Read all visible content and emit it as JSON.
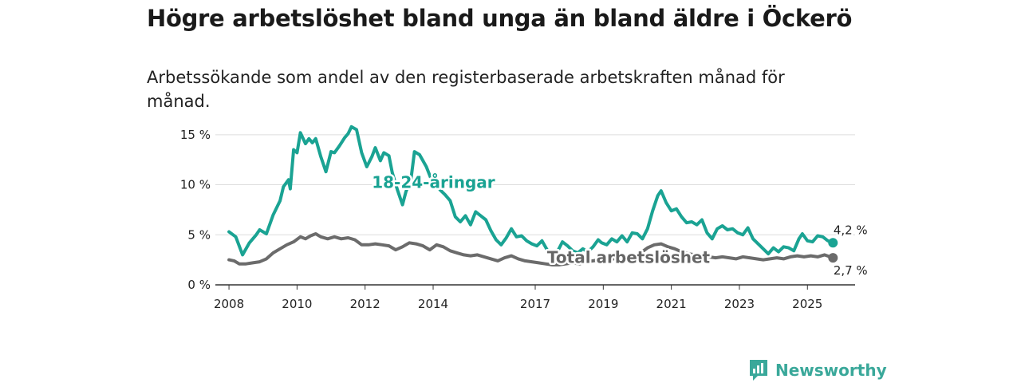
{
  "title": "Högre arbetslöshet bland unga än bland äldre i Öckerö",
  "subtitle": "Arbetssökande som andel av den registerbaserade arbetskraften månad för månad.",
  "brand": {
    "name": "Newsworthy",
    "icon": "newsworthy-chart-bubble-icon"
  },
  "colors": {
    "youth": "#1aa393",
    "total": "#6b6b6b",
    "grid": "#dddddd"
  },
  "chart_data": {
    "type": "line",
    "xlabel": "",
    "ylabel": "",
    "xlim": [
      2007.6,
      2026.4
    ],
    "ylim": [
      0,
      16.5
    ],
    "y_ticks": [
      {
        "value": 0,
        "label": "0 %"
      },
      {
        "value": 5,
        "label": "5 %"
      },
      {
        "value": 10,
        "label": "10 %"
      },
      {
        "value": 15,
        "label": "15 %"
      }
    ],
    "x_ticks": [
      {
        "value": 2008,
        "label": "2008"
      },
      {
        "value": 2010,
        "label": "2010"
      },
      {
        "value": 2012,
        "label": "2012"
      },
      {
        "value": 2014,
        "label": "2014"
      },
      {
        "value": 2017,
        "label": "2017"
      },
      {
        "value": 2019,
        "label": "2019"
      },
      {
        "value": 2021,
        "label": "2021"
      },
      {
        "value": 2023,
        "label": "2023"
      },
      {
        "value": 2025,
        "label": "2025"
      }
    ],
    "series": [
      {
        "name": "18-24-åringar",
        "label": "18-24-åringar",
        "label_at": {
          "x": 2012.2,
          "y": 9.7
        },
        "end_label": "4,2 %",
        "end_value": 4.2,
        "points": [
          [
            2008.0,
            5.3
          ],
          [
            2008.2,
            4.8
          ],
          [
            2008.4,
            3.0
          ],
          [
            2008.6,
            4.2
          ],
          [
            2008.8,
            5.0
          ],
          [
            2008.9,
            5.5
          ],
          [
            2009.1,
            5.1
          ],
          [
            2009.3,
            7.0
          ],
          [
            2009.5,
            8.4
          ],
          [
            2009.6,
            9.8
          ],
          [
            2009.75,
            10.5
          ],
          [
            2009.8,
            9.6
          ],
          [
            2009.9,
            13.5
          ],
          [
            2010.0,
            13.2
          ],
          [
            2010.1,
            15.2
          ],
          [
            2010.25,
            14.1
          ],
          [
            2010.35,
            14.6
          ],
          [
            2010.45,
            14.2
          ],
          [
            2010.55,
            14.6
          ],
          [
            2010.7,
            12.8
          ],
          [
            2010.85,
            11.3
          ],
          [
            2011.0,
            13.3
          ],
          [
            2011.1,
            13.2
          ],
          [
            2011.25,
            13.9
          ],
          [
            2011.4,
            14.7
          ],
          [
            2011.5,
            15.1
          ],
          [
            2011.6,
            15.8
          ],
          [
            2011.75,
            15.5
          ],
          [
            2011.9,
            13.2
          ],
          [
            2012.05,
            11.8
          ],
          [
            2012.2,
            12.8
          ],
          [
            2012.3,
            13.7
          ],
          [
            2012.45,
            12.4
          ],
          [
            2012.55,
            13.2
          ],
          [
            2012.7,
            12.9
          ],
          [
            2012.8,
            11.2
          ],
          [
            2012.95,
            9.5
          ],
          [
            2013.1,
            8.0
          ],
          [
            2013.2,
            9.3
          ],
          [
            2013.35,
            10.6
          ],
          [
            2013.45,
            13.3
          ],
          [
            2013.6,
            13.0
          ],
          [
            2013.8,
            11.8
          ],
          [
            2013.95,
            10.5
          ],
          [
            2014.05,
            11.0
          ],
          [
            2014.2,
            9.5
          ],
          [
            2014.35,
            9.0
          ],
          [
            2014.5,
            8.4
          ],
          [
            2014.65,
            6.8
          ],
          [
            2014.8,
            6.3
          ],
          [
            2014.95,
            6.9
          ],
          [
            2015.1,
            6.0
          ],
          [
            2015.25,
            7.3
          ],
          [
            2015.4,
            6.9
          ],
          [
            2015.55,
            6.5
          ],
          [
            2015.7,
            5.4
          ],
          [
            2015.85,
            4.5
          ],
          [
            2016.0,
            4.0
          ],
          [
            2016.15,
            4.7
          ],
          [
            2016.3,
            5.6
          ],
          [
            2016.45,
            4.8
          ],
          [
            2016.6,
            4.9
          ],
          [
            2016.75,
            4.4
          ],
          [
            2016.9,
            4.1
          ],
          [
            2017.05,
            3.9
          ],
          [
            2017.2,
            4.4
          ],
          [
            2017.35,
            3.5
          ],
          [
            2017.5,
            3.1
          ],
          [
            2017.65,
            3.3
          ],
          [
            2017.8,
            4.3
          ],
          [
            2017.95,
            3.9
          ],
          [
            2018.1,
            3.4
          ],
          [
            2018.25,
            3.2
          ],
          [
            2018.4,
            3.6
          ],
          [
            2018.55,
            3.3
          ],
          [
            2018.7,
            3.8
          ],
          [
            2018.85,
            4.5
          ],
          [
            2018.95,
            4.2
          ],
          [
            2019.1,
            4.0
          ],
          [
            2019.25,
            4.6
          ],
          [
            2019.4,
            4.3
          ],
          [
            2019.55,
            4.9
          ],
          [
            2019.7,
            4.3
          ],
          [
            2019.85,
            5.2
          ],
          [
            2020.0,
            5.1
          ],
          [
            2020.15,
            4.6
          ],
          [
            2020.3,
            5.6
          ],
          [
            2020.45,
            7.4
          ],
          [
            2020.6,
            8.9
          ],
          [
            2020.7,
            9.4
          ],
          [
            2020.85,
            8.2
          ],
          [
            2021.0,
            7.4
          ],
          [
            2021.15,
            7.6
          ],
          [
            2021.3,
            6.8
          ],
          [
            2021.45,
            6.2
          ],
          [
            2021.6,
            6.3
          ],
          [
            2021.75,
            6.0
          ],
          [
            2021.9,
            6.5
          ],
          [
            2022.05,
            5.2
          ],
          [
            2022.2,
            4.6
          ],
          [
            2022.35,
            5.6
          ],
          [
            2022.5,
            5.9
          ],
          [
            2022.65,
            5.5
          ],
          [
            2022.8,
            5.6
          ],
          [
            2022.95,
            5.2
          ],
          [
            2023.1,
            5.0
          ],
          [
            2023.25,
            5.7
          ],
          [
            2023.4,
            4.6
          ],
          [
            2023.55,
            4.1
          ],
          [
            2023.7,
            3.6
          ],
          [
            2023.85,
            3.1
          ],
          [
            2024.0,
            3.7
          ],
          [
            2024.15,
            3.3
          ],
          [
            2024.3,
            3.8
          ],
          [
            2024.45,
            3.7
          ],
          [
            2024.6,
            3.4
          ],
          [
            2024.75,
            4.6
          ],
          [
            2024.85,
            5.1
          ],
          [
            2025.0,
            4.4
          ],
          [
            2025.15,
            4.3
          ],
          [
            2025.3,
            4.9
          ],
          [
            2025.45,
            4.8
          ],
          [
            2025.6,
            4.4
          ],
          [
            2025.75,
            4.2
          ]
        ]
      },
      {
        "name": "Total arbetslöshet",
        "label": "Total arbetslöshet",
        "label_at": {
          "x": 2017.35,
          "y": 2.2
        },
        "end_label": "2,7 %",
        "end_value": 2.7,
        "points": [
          [
            2008.0,
            2.5
          ],
          [
            2008.15,
            2.4
          ],
          [
            2008.3,
            2.1
          ],
          [
            2008.5,
            2.1
          ],
          [
            2008.7,
            2.2
          ],
          [
            2008.9,
            2.3
          ],
          [
            2009.1,
            2.6
          ],
          [
            2009.3,
            3.2
          ],
          [
            2009.5,
            3.6
          ],
          [
            2009.7,
            4.0
          ],
          [
            2009.9,
            4.3
          ],
          [
            2010.1,
            4.8
          ],
          [
            2010.25,
            4.6
          ],
          [
            2010.4,
            4.9
          ],
          [
            2010.55,
            5.1
          ],
          [
            2010.7,
            4.8
          ],
          [
            2010.9,
            4.6
          ],
          [
            2011.1,
            4.8
          ],
          [
            2011.3,
            4.6
          ],
          [
            2011.5,
            4.7
          ],
          [
            2011.7,
            4.5
          ],
          [
            2011.9,
            4.0
          ],
          [
            2012.1,
            4.0
          ],
          [
            2012.3,
            4.1
          ],
          [
            2012.5,
            4.0
          ],
          [
            2012.7,
            3.9
          ],
          [
            2012.9,
            3.5
          ],
          [
            2013.1,
            3.8
          ],
          [
            2013.3,
            4.2
          ],
          [
            2013.5,
            4.1
          ],
          [
            2013.7,
            3.9
          ],
          [
            2013.9,
            3.5
          ],
          [
            2014.1,
            4.0
          ],
          [
            2014.3,
            3.8
          ],
          [
            2014.5,
            3.4
          ],
          [
            2014.7,
            3.2
          ],
          [
            2014.9,
            3.0
          ],
          [
            2015.1,
            2.9
          ],
          [
            2015.3,
            3.0
          ],
          [
            2015.5,
            2.8
          ],
          [
            2015.7,
            2.6
          ],
          [
            2015.9,
            2.4
          ],
          [
            2016.1,
            2.7
          ],
          [
            2016.3,
            2.9
          ],
          [
            2016.5,
            2.6
          ],
          [
            2016.7,
            2.4
          ],
          [
            2016.9,
            2.3
          ],
          [
            2017.1,
            2.2
          ],
          [
            2017.3,
            2.1
          ],
          [
            2017.5,
            2.0
          ],
          [
            2017.7,
            2.0
          ],
          [
            2017.9,
            2.1
          ],
          [
            2018.1,
            2.2
          ],
          [
            2018.3,
            2.1
          ],
          [
            2018.5,
            2.3
          ],
          [
            2018.7,
            2.4
          ],
          [
            2018.9,
            2.5
          ],
          [
            2019.1,
            2.4
          ],
          [
            2019.3,
            2.6
          ],
          [
            2019.5,
            2.7
          ],
          [
            2019.7,
            2.8
          ],
          [
            2019.9,
            2.9
          ],
          [
            2020.1,
            3.2
          ],
          [
            2020.3,
            3.7
          ],
          [
            2020.5,
            4.0
          ],
          [
            2020.7,
            4.1
          ],
          [
            2020.9,
            3.8
          ],
          [
            2021.1,
            3.6
          ],
          [
            2021.3,
            3.3
          ],
          [
            2021.5,
            3.1
          ],
          [
            2021.7,
            3.0
          ],
          [
            2021.9,
            2.9
          ],
          [
            2022.1,
            2.8
          ],
          [
            2022.3,
            2.7
          ],
          [
            2022.5,
            2.8
          ],
          [
            2022.7,
            2.7
          ],
          [
            2022.9,
            2.6
          ],
          [
            2023.1,
            2.8
          ],
          [
            2023.3,
            2.7
          ],
          [
            2023.5,
            2.6
          ],
          [
            2023.7,
            2.5
          ],
          [
            2023.9,
            2.6
          ],
          [
            2024.1,
            2.7
          ],
          [
            2024.3,
            2.6
          ],
          [
            2024.5,
            2.8
          ],
          [
            2024.7,
            2.9
          ],
          [
            2024.9,
            2.8
          ],
          [
            2025.1,
            2.9
          ],
          [
            2025.3,
            2.8
          ],
          [
            2025.5,
            3.0
          ],
          [
            2025.75,
            2.7
          ]
        ]
      }
    ]
  }
}
